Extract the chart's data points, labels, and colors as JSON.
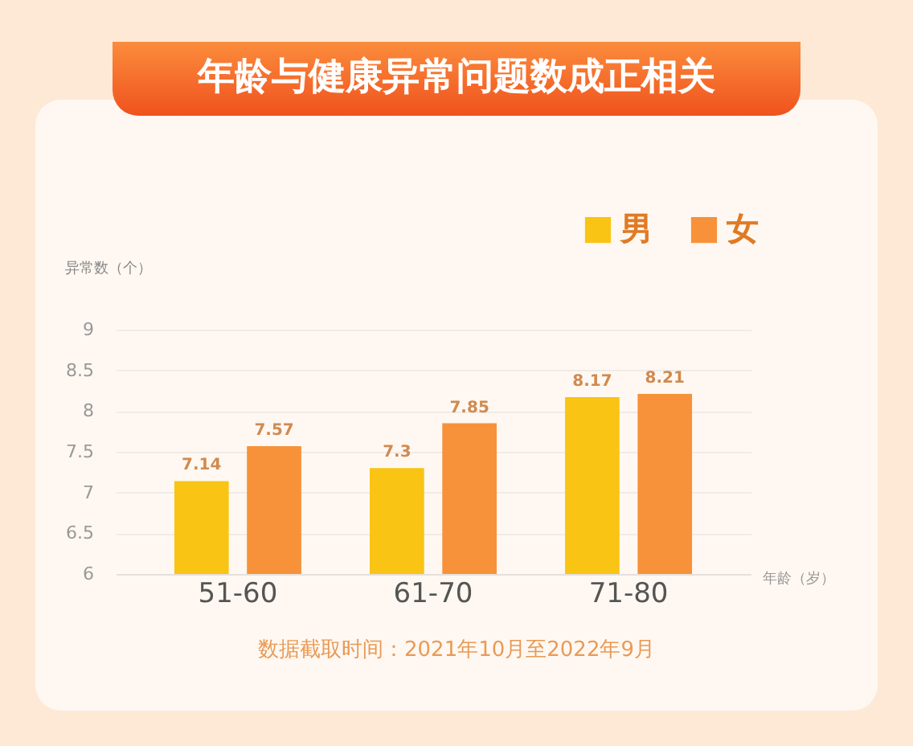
{
  "chart_data": {
    "type": "bar",
    "title": "年龄与健康异常问题数成正相关",
    "xlabel": "年龄（岁）",
    "ylabel": "异常数（个）",
    "categories": [
      "51-60",
      "61-70",
      "71-80"
    ],
    "series": [
      {
        "name": "男",
        "color": "#f9c414",
        "values": [
          7.14,
          7.3,
          8.17
        ]
      },
      {
        "name": "女",
        "color": "#f7923a",
        "values": [
          7.57,
          7.85,
          8.21
        ]
      }
    ],
    "ylim": [
      6,
      9
    ],
    "yticks": [
      6,
      6.5,
      7,
      7.5,
      8,
      8.5,
      9
    ],
    "grid": "y",
    "legend": "top right",
    "data_labels": true,
    "annotations": [
      "数据截取时间：2021年10月至2022年9月"
    ]
  }
}
